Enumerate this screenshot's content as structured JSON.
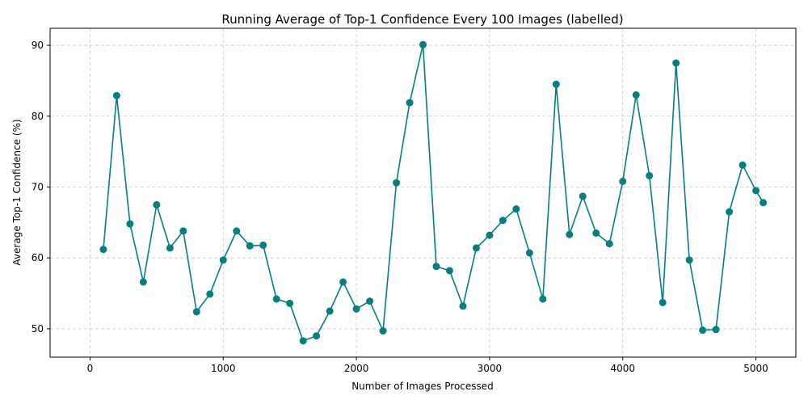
{
  "chart_data": {
    "type": "line",
    "title": "Running Average of Top-1 Confidence Every 100 Images (labelled)",
    "xlabel": "Number of Images Processed",
    "ylabel": "Average Top-1 Confidence (%)",
    "xlim": [
      -300,
      5300
    ],
    "ylim": [
      46,
      92.4
    ],
    "xticks": [
      0,
      1000,
      2000,
      3000,
      4000,
      5000
    ],
    "yticks": [
      50,
      60,
      70,
      80,
      90
    ],
    "grid": true,
    "color": "#008080",
    "x": [
      100,
      200,
      300,
      400,
      500,
      600,
      700,
      800,
      900,
      1000,
      1100,
      1200,
      1300,
      1400,
      1500,
      1600,
      1700,
      1800,
      1900,
      2000,
      2100,
      2200,
      2300,
      2400,
      2500,
      2600,
      2700,
      2800,
      2900,
      3000,
      3100,
      3200,
      3300,
      3400,
      3500,
      3600,
      3700,
      3800,
      3900,
      4000,
      4100,
      4200,
      4300,
      4400,
      4500,
      4600,
      4700,
      4800,
      4900,
      5000,
      5055
    ],
    "y": [
      61.2,
      82.9,
      64.8,
      56.6,
      67.5,
      61.4,
      63.8,
      52.4,
      54.9,
      59.7,
      63.8,
      61.7,
      61.8,
      54.2,
      53.6,
      48.3,
      49.0,
      52.5,
      56.6,
      52.8,
      53.9,
      49.7,
      70.6,
      81.9,
      90.1,
      58.8,
      58.2,
      53.2,
      61.4,
      63.2,
      65.3,
      66.9,
      60.7,
      54.2,
      84.5,
      63.3,
      68.7,
      63.5,
      62.0,
      70.8,
      83.0,
      71.6,
      53.7,
      87.5,
      59.7,
      49.8,
      49.9,
      66.5,
      73.1,
      69.5,
      67.8
    ]
  }
}
